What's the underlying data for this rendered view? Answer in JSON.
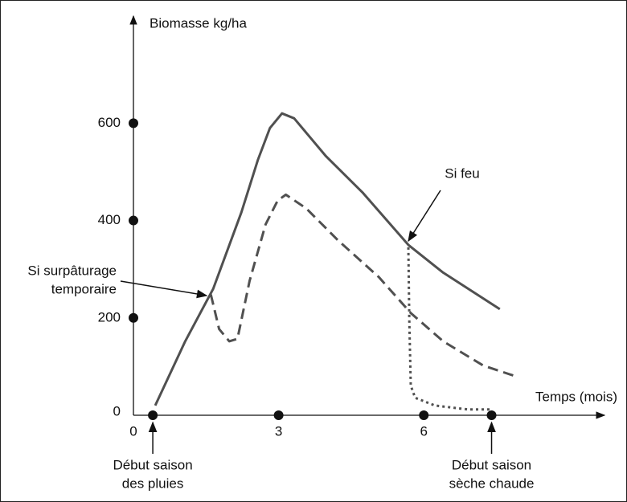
{
  "chart_data": {
    "type": "line",
    "y_label": "Biomasse kg/ha",
    "x_label": "Temps (mois)",
    "xlim": [
      0,
      9.7
    ],
    "ylim": [
      0,
      820
    ],
    "xticks": [
      0,
      3,
      6
    ],
    "yticks": [
      0,
      200,
      400,
      600
    ],
    "series": [
      {
        "color": "#505050",
        "style": "solid",
        "x": [
          0.45,
          1.07,
          1.65,
          2.23,
          2.57,
          2.82,
          3.07,
          3.32,
          3.98,
          4.73,
          5.68,
          6.4,
          7.57
        ],
        "values": [
          20,
          152,
          260,
          417,
          524,
          590,
          620,
          610,
          532,
          458,
          350,
          293,
          218
        ]
      },
      {
        "color": "#505050",
        "style": "dashed",
        "x": [
          1.6,
          1.77,
          1.98,
          2.15,
          2.4,
          2.73,
          2.98,
          3.15,
          3.57,
          4.23,
          5.07,
          5.73,
          6.4,
          7.23,
          7.87
        ],
        "values": [
          248,
          177,
          152,
          157,
          276,
          392,
          441,
          453,
          425,
          359,
          284,
          210,
          152,
          102,
          81
        ]
      },
      {
        "color": "#505050",
        "style": "dotted",
        "x": [
          5.68,
          5.7,
          5.73,
          5.82,
          6.23,
          6.9,
          7.4
        ],
        "values": [
          345,
          193,
          61,
          36,
          20,
          12,
          12
        ]
      }
    ],
    "annotations": [
      {
        "lines": [
          "Si surpâturage",
          "temporaire"
        ]
      },
      {
        "lines": [
          "Si feu"
        ]
      },
      {
        "lines": [
          "Début saison",
          "des pluies"
        ],
        "x": 0.4
      },
      {
        "lines": [
          "Début saison",
          "sèche chaude"
        ],
        "x": 7.4
      }
    ]
  }
}
